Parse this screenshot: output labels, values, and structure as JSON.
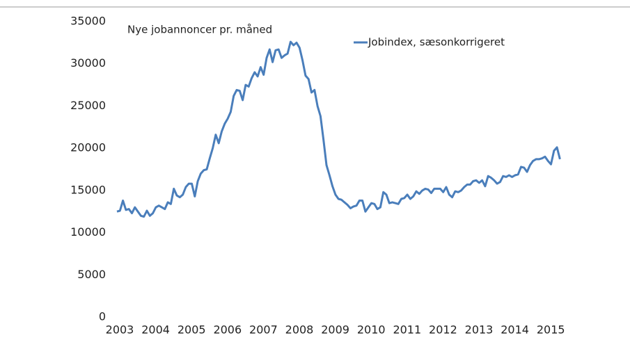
{
  "chart_data": {
    "type": "line",
    "annotation": "Nye jobannoncer pr. måned",
    "categories": [
      "2003",
      null,
      null,
      null,
      null,
      null,
      null,
      null,
      null,
      null,
      null,
      null,
      "2004",
      null,
      null,
      null,
      null,
      null,
      null,
      null,
      null,
      null,
      null,
      null,
      "2005",
      null,
      null,
      null,
      null,
      null,
      null,
      null,
      null,
      null,
      null,
      null,
      "2006",
      null,
      null,
      null,
      null,
      null,
      null,
      null,
      null,
      null,
      null,
      null,
      "2007",
      null,
      null,
      null,
      null,
      null,
      null,
      null,
      null,
      null,
      null,
      null,
      "2008",
      null,
      null,
      null,
      null,
      null,
      null,
      null,
      null,
      null,
      null,
      null,
      "2009",
      null,
      null,
      null,
      null,
      null,
      null,
      null,
      null,
      null,
      null,
      null,
      "2010",
      null,
      null,
      null,
      null,
      null,
      null,
      null,
      null,
      null,
      null,
      null,
      "2011",
      null,
      null,
      null,
      null,
      null,
      null,
      null,
      null,
      null,
      null,
      null,
      "2012",
      null,
      null,
      null,
      null,
      null,
      null,
      null,
      null,
      null,
      null,
      null,
      "2013",
      null,
      null,
      null,
      null,
      null,
      null,
      null,
      null,
      null,
      null,
      null,
      "2014",
      null,
      null,
      null,
      null,
      null,
      null,
      null,
      null,
      null,
      null,
      null,
      "2015",
      null,
      null,
      null,
      null
    ],
    "series": [
      {
        "name": "Jobindex, sæsonkorrigeret",
        "color": "#4a7ebb",
        "values": [
          12500,
          12600,
          13800,
          12700,
          12800,
          12300,
          13000,
          12500,
          12000,
          11900,
          12600,
          12000,
          12300,
          13000,
          13200,
          13000,
          12800,
          13600,
          13400,
          15200,
          14400,
          14200,
          14500,
          15400,
          15800,
          15800,
          14300,
          16100,
          17000,
          17400,
          17500,
          18800,
          20000,
          21600,
          20600,
          22000,
          22900,
          23500,
          24300,
          26200,
          26900,
          26800,
          25700,
          27500,
          27300,
          28300,
          29000,
          28500,
          29600,
          28700,
          30700,
          31700,
          30200,
          31600,
          31700,
          30700,
          31000,
          31200,
          32600,
          32200,
          32500,
          31900,
          30400,
          28600,
          28200,
          26600,
          26900,
          25000,
          23800,
          21000,
          18000,
          16800,
          15500,
          14500,
          14000,
          13900,
          13600,
          13300,
          12900,
          13100,
          13200,
          13800,
          13800,
          12500,
          13000,
          13500,
          13400,
          12800,
          13000,
          14800,
          14500,
          13500,
          13600,
          13500,
          13400,
          14000,
          14100,
          14500,
          14000,
          14300,
          14900,
          14600,
          15000,
          15200,
          15100,
          14700,
          15200,
          15200,
          15200,
          14800,
          15400,
          14500,
          14200,
          14900,
          14800,
          15000,
          15400,
          15700,
          15700,
          16100,
          16200,
          15900,
          16200,
          15500,
          16700,
          16500,
          16200,
          15800,
          16000,
          16700,
          16600,
          16800,
          16600,
          16800,
          16900,
          17800,
          17700,
          17200,
          18000,
          18500,
          18700,
          18700,
          18800,
          19000,
          18500,
          18100,
          19700,
          20100,
          18700
        ]
      }
    ],
    "ylim": [
      0,
      35000
    ],
    "yticks": [
      0,
      5000,
      10000,
      15000,
      20000,
      25000,
      30000,
      35000
    ],
    "grid": false
  }
}
